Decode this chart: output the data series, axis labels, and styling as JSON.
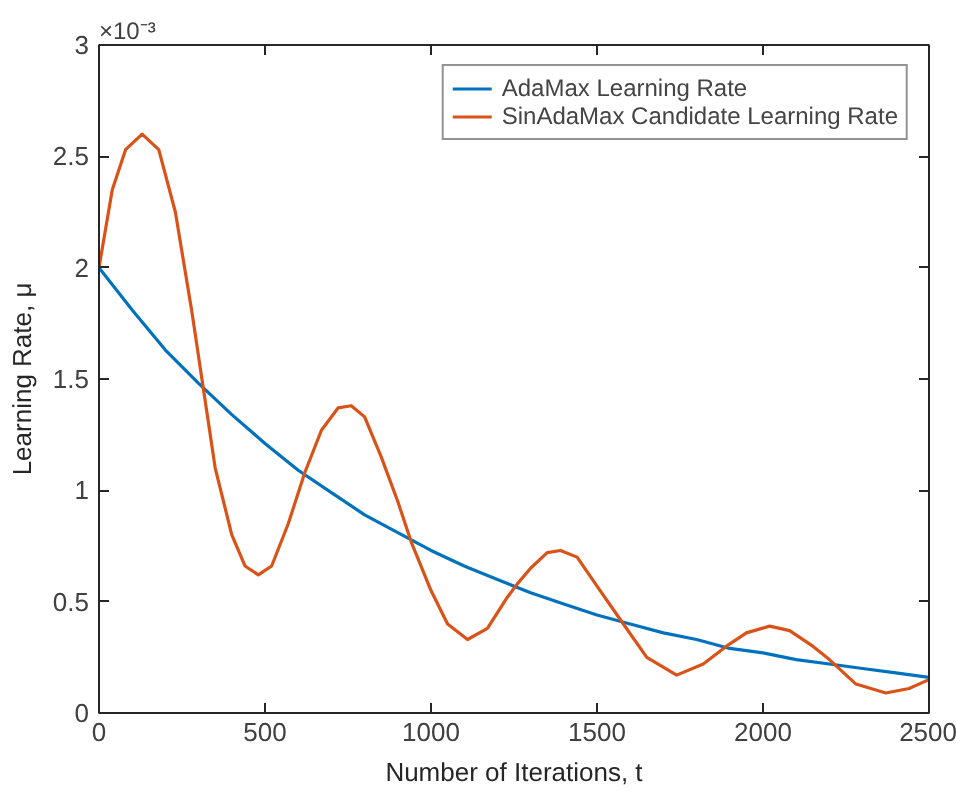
{
  "chart_data": {
    "type": "line",
    "xlabel": "Number of Iterations, t",
    "ylabel": "Learning Rate, μ",
    "annotations": [
      "×10⁻³"
    ],
    "xlim": [
      0,
      2500
    ],
    "xticks": [
      0,
      500,
      1000,
      1500,
      2000,
      2500
    ],
    "ylim": [
      0,
      3
    ],
    "yticks": [
      0,
      0.5,
      1,
      1.5,
      2,
      2.5,
      3
    ],
    "grid": false,
    "legend": "top right",
    "line_style": "solid",
    "series": [
      {
        "name": "AdaMax Learning Rate",
        "color": "#0072bd",
        "x": [
          0,
          100,
          200,
          300,
          400,
          500,
          600,
          700,
          800,
          900,
          1000,
          1100,
          1200,
          1300,
          1400,
          1500,
          1600,
          1700,
          1800,
          1900,
          2000,
          2100,
          2200,
          2300,
          2400,
          2500
        ],
        "values": [
          2.0,
          1.81,
          1.63,
          1.48,
          1.34,
          1.21,
          1.09,
          0.99,
          0.89,
          0.81,
          0.73,
          0.66,
          0.6,
          0.54,
          0.49,
          0.44,
          0.4,
          0.36,
          0.33,
          0.29,
          0.27,
          0.24,
          0.22,
          0.2,
          0.18,
          0.16
        ]
      },
      {
        "name": "SinAdaMax Candidate Learning Rate",
        "color": "#d95319",
        "x": [
          0,
          40,
          80,
          130,
          180,
          230,
          280,
          310,
          350,
          400,
          440,
          480,
          520,
          570,
          620,
          670,
          720,
          760,
          800,
          850,
          900,
          940,
          1000,
          1050,
          1110,
          1170,
          1230,
          1260,
          1300,
          1350,
          1390,
          1440,
          1500,
          1570,
          1650,
          1740,
          1820,
          1890,
          1950,
          2020,
          2080,
          2150,
          2200,
          2280,
          2370,
          2440,
          2500
        ],
        "values": [
          2.0,
          2.35,
          2.53,
          2.6,
          2.53,
          2.25,
          1.8,
          1.5,
          1.1,
          0.8,
          0.66,
          0.62,
          0.66,
          0.85,
          1.08,
          1.27,
          1.37,
          1.38,
          1.33,
          1.15,
          0.95,
          0.77,
          0.55,
          0.4,
          0.33,
          0.38,
          0.52,
          0.58,
          0.65,
          0.72,
          0.73,
          0.7,
          0.57,
          0.42,
          0.25,
          0.17,
          0.22,
          0.3,
          0.36,
          0.39,
          0.37,
          0.3,
          0.24,
          0.13,
          0.09,
          0.11,
          0.15
        ]
      }
    ]
  }
}
